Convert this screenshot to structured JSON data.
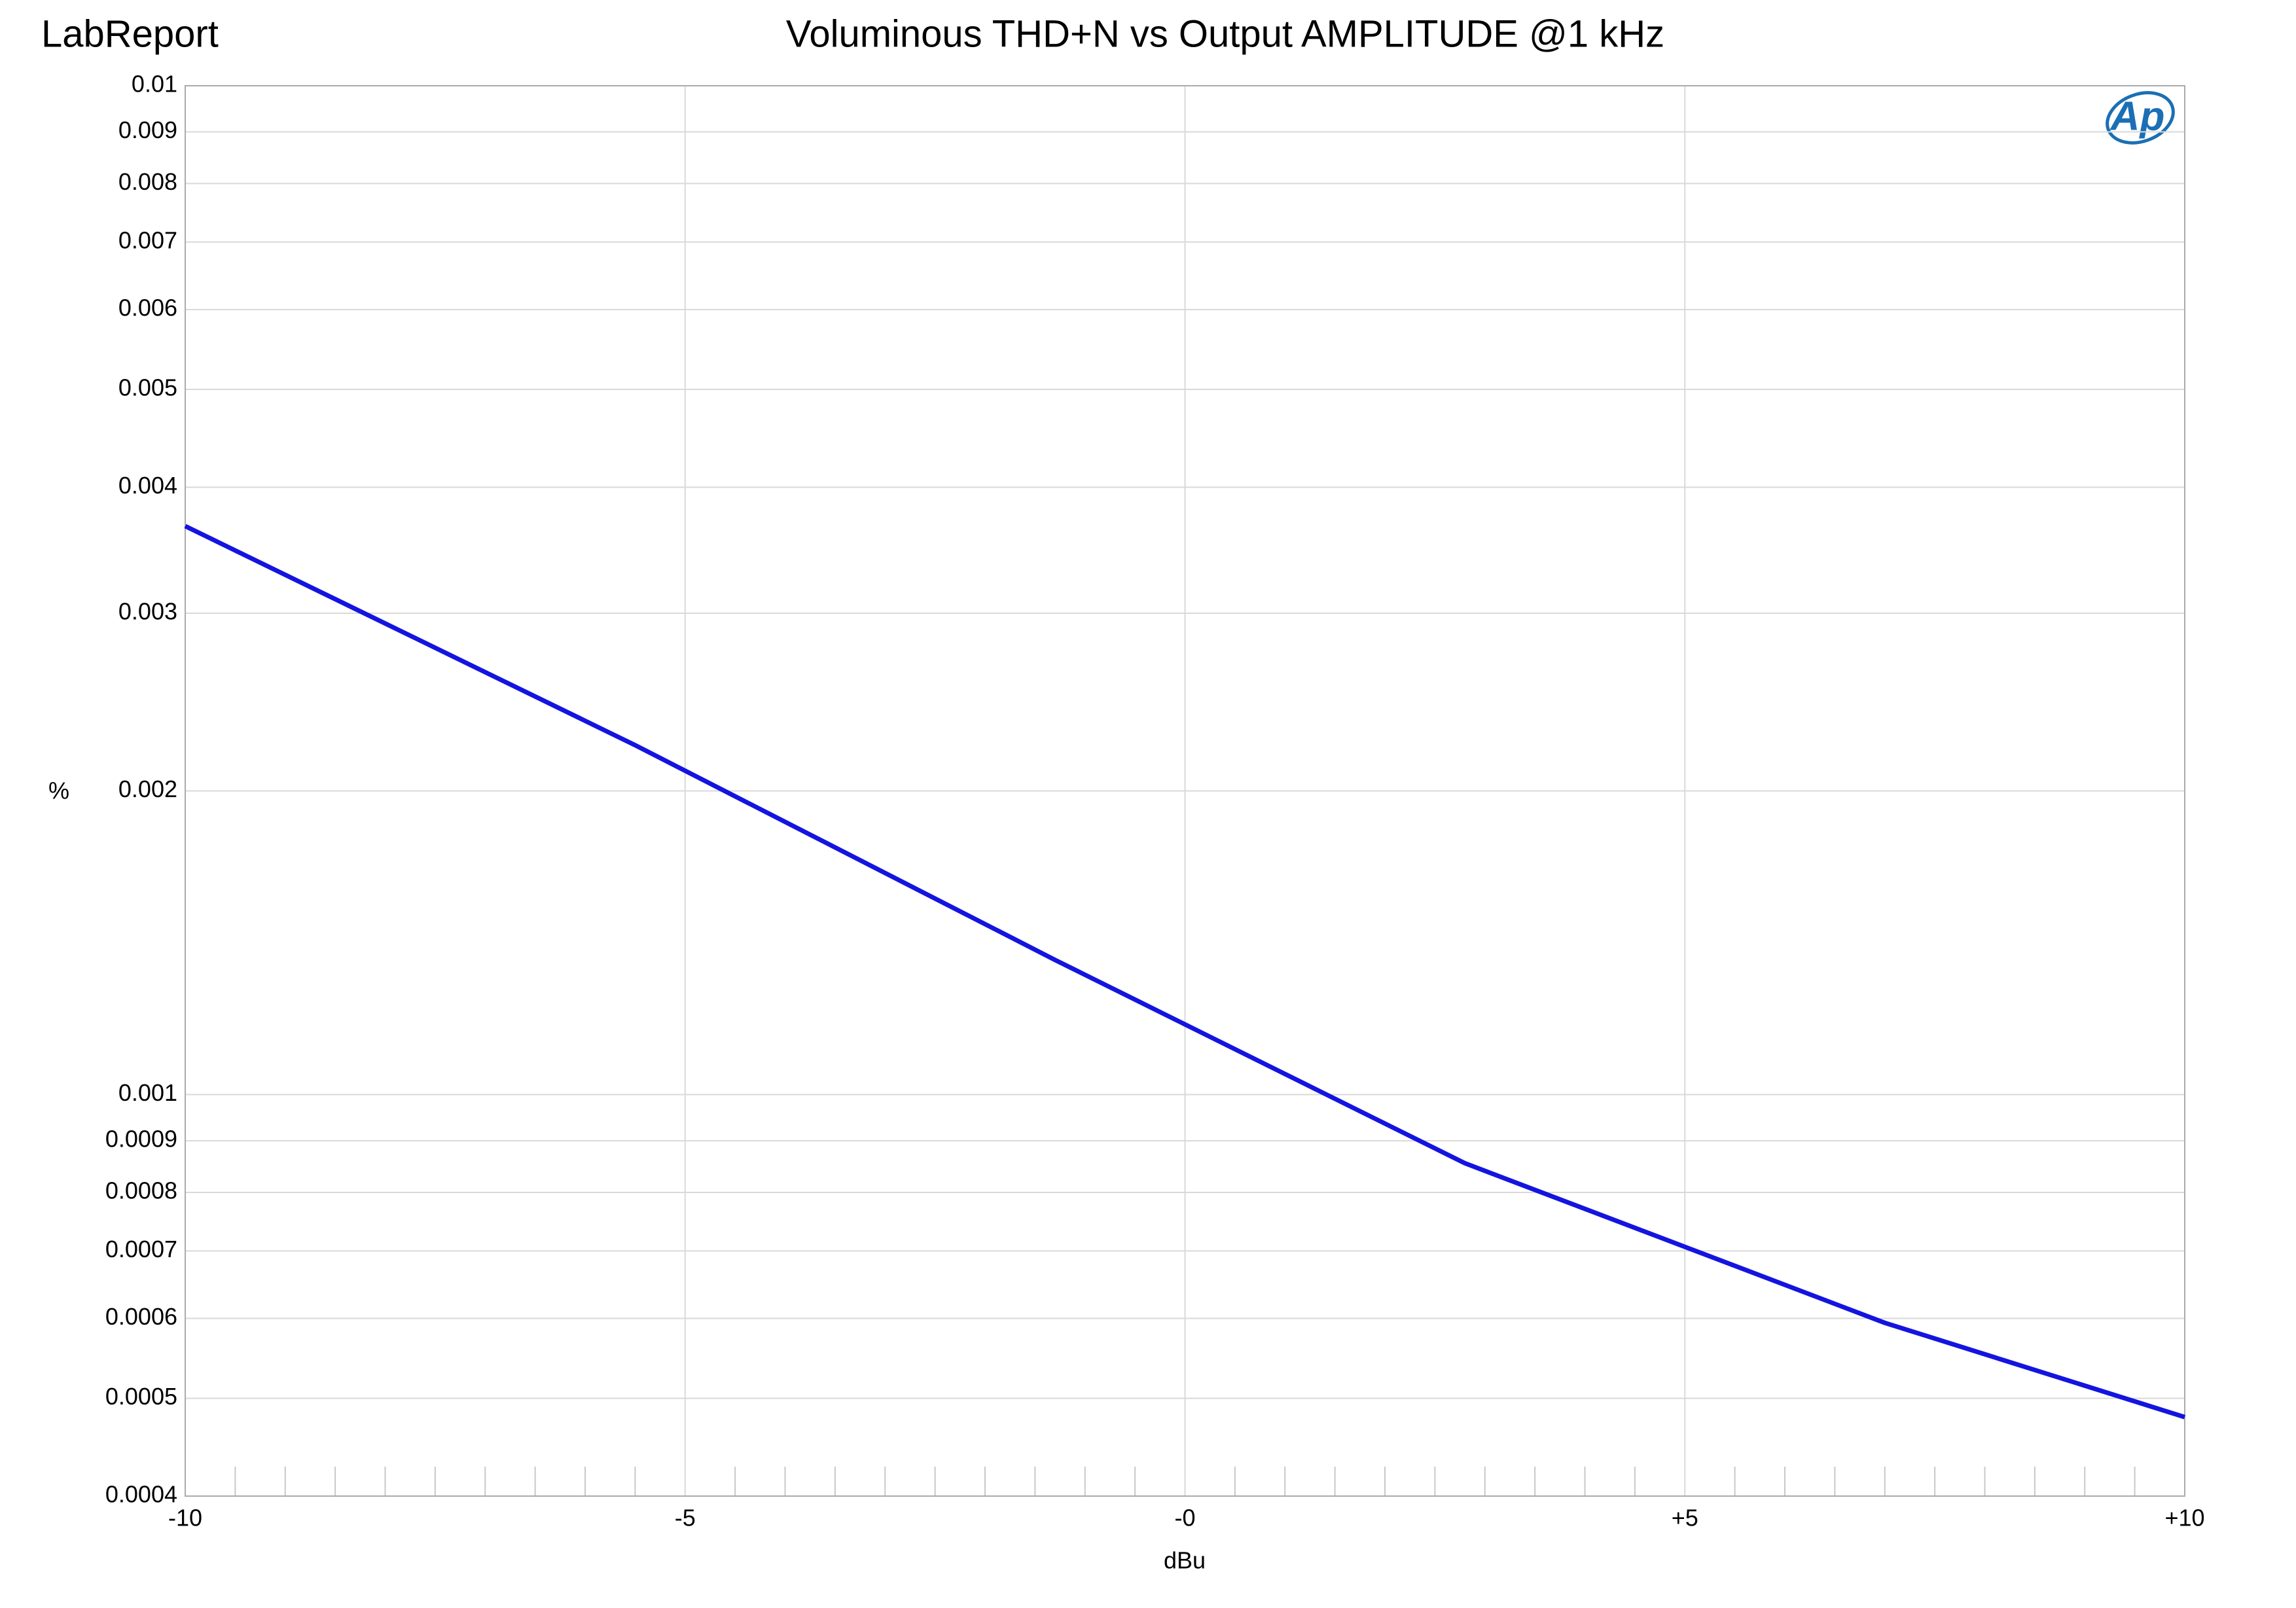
{
  "header": "LabReport",
  "chart_data": {
    "type": "line",
    "title": "Voluminous THD+N vs Output AMPLITUDE @1 kHz",
    "x_label": "dBu",
    "y_label": "%",
    "x": [
      -10,
      -5.5,
      -1.3,
      2.8,
      7,
      10
    ],
    "series": [
      {
        "name": "THD+N",
        "color": "#1414e0",
        "values": [
          0.00366,
          0.00222,
          0.00136,
          0.000855,
          0.000594,
          0.000479
        ]
      }
    ],
    "xlim": [
      -10,
      10
    ],
    "xticks": [
      -10,
      -5,
      {
        "value": 0,
        "label": "-0"
      },
      {
        "value": 5,
        "label": "+5"
      },
      {
        "value": 10,
        "label": "+10"
      }
    ],
    "xminorticks": [
      -9.5,
      -9,
      -8.5,
      -8,
      -7.5,
      -7,
      -6.5,
      -6,
      -5.5,
      -4.5,
      -4,
      -3.5,
      -3,
      -2.5,
      -2,
      -1.5,
      -1,
      -0.5,
      0.5,
      1,
      1.5,
      2,
      2.5,
      3,
      3.5,
      4,
      4.5,
      5.5,
      6,
      6.5,
      7,
      7.5,
      8,
      8.5,
      9,
      9.5
    ],
    "ylim": [
      0.0004,
      0.01
    ],
    "log_y": true,
    "grid": true,
    "yticks": [
      0.01,
      0.009,
      0.008,
      0.007,
      0.006,
      0.005,
      0.004,
      0.003,
      0.002,
      0.001,
      0.0009,
      0.0008,
      0.0007,
      0.0006,
      0.0005,
      0.0004
    ]
  }
}
